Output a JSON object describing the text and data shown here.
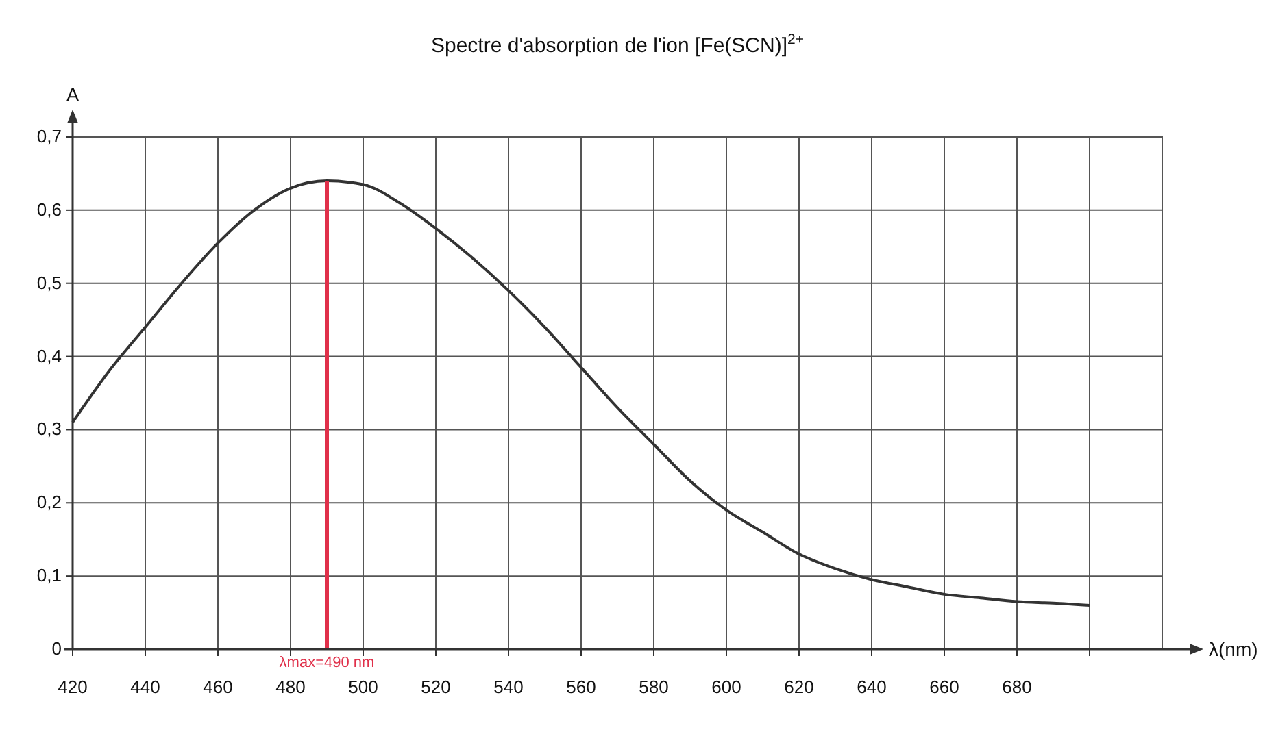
{
  "chart_data": {
    "type": "line",
    "title": "Spectre d'absorption de l'ion [Fe(SCN)]$^{2+}$",
    "xlabel": "λ(nm)",
    "ylabel": "A",
    "x": [
      420,
      430,
      440,
      450,
      460,
      470,
      480,
      490,
      500,
      510,
      520,
      530,
      540,
      550,
      560,
      570,
      580,
      590,
      600,
      610,
      620,
      630,
      640,
      650,
      660,
      670,
      680,
      690,
      700
    ],
    "series": [
      {
        "color": "#333333",
        "values": [
          0.31,
          0.38,
          0.44,
          0.5,
          0.555,
          0.6,
          0.63,
          0.64,
          0.635,
          0.61,
          0.575,
          0.535,
          0.49,
          0.44,
          0.385,
          0.33,
          0.28,
          0.23,
          0.19,
          0.16,
          0.13,
          0.11,
          0.095,
          0.085,
          0.075,
          0.07,
          0.065,
          0.063,
          0.06
        ]
      }
    ],
    "xlim": [
      420,
      720
    ],
    "xticks": [
      420,
      440,
      460,
      480,
      500,
      520,
      540,
      560,
      580,
      600,
      620,
      640,
      660,
      680,
      {
        "value": 700,
        "label": null
      }
    ],
    "ylim": [
      0,
      0.7
    ],
    "yticks": [
      0,
      {
        "value": 0.1,
        "label": "0,1"
      },
      {
        "value": 0.2,
        "label": "0,2"
      },
      {
        "value": 0.3,
        "label": "0,3"
      },
      {
        "value": 0.4,
        "label": "0,4"
      },
      {
        "value": 0.5,
        "label": "0,5"
      },
      {
        "value": 0.6,
        "label": "0,6"
      },
      {
        "value": 0.7,
        "label": "0,7"
      }
    ],
    "grid": true,
    "marker": "none",
    "line_style": "solid",
    "ref_lines": [
      {
        "axis": "x",
        "value": 490,
        "label": "λmax=490 nm",
        "color": "#e0304a"
      }
    ]
  }
}
